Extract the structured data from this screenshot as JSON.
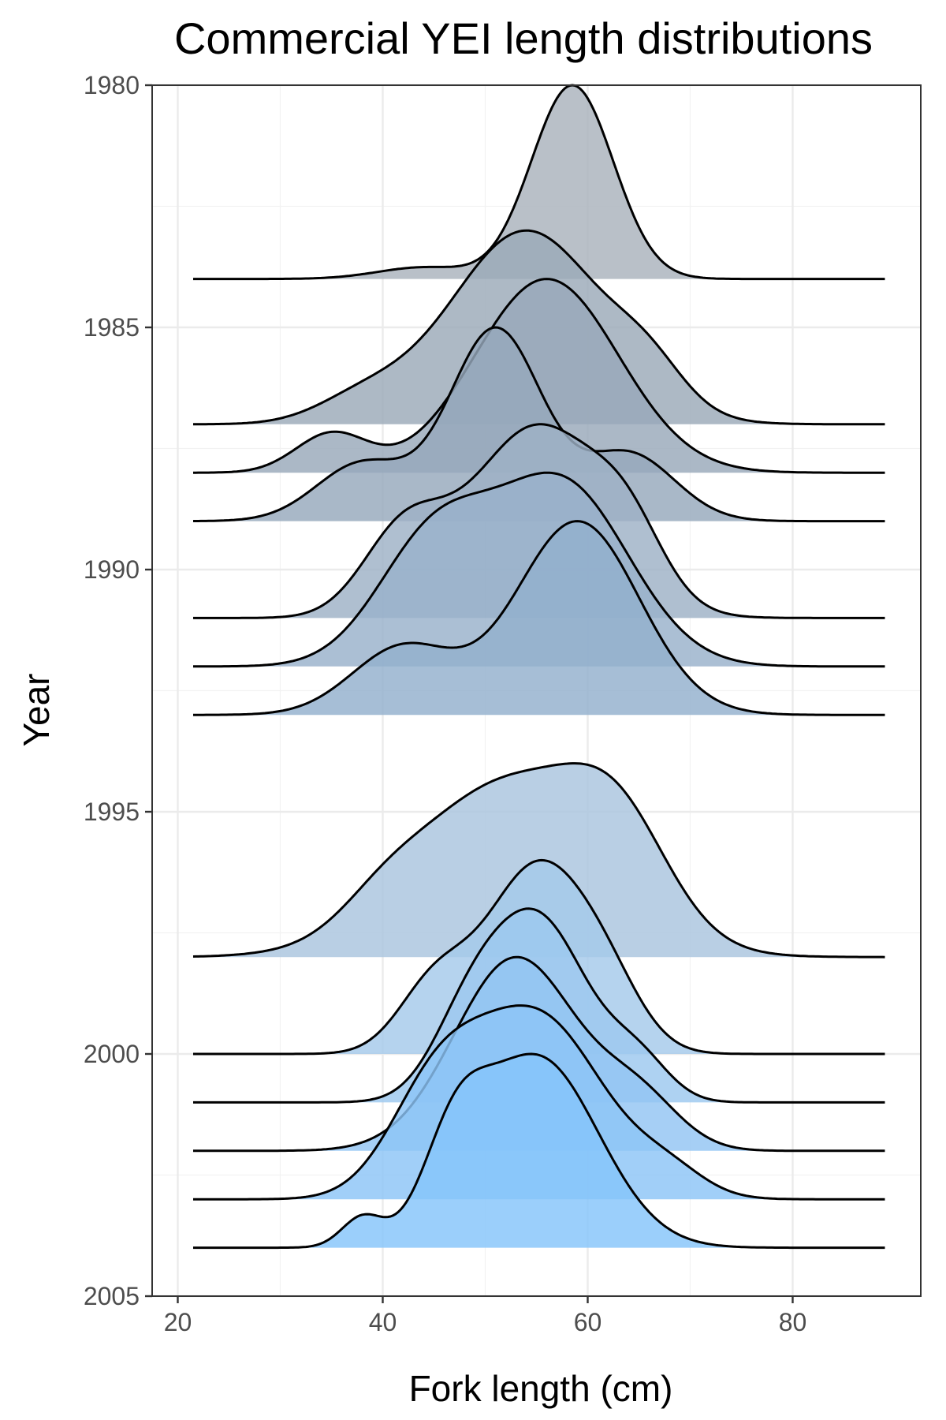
{
  "chart_data": {
    "type": "ridgeline",
    "title": "Commercial YEI length distributions",
    "xlabel": "Fork length (cm)",
    "ylabel": "Year",
    "xlim": [
      17.5,
      92.5
    ],
    "ylim": [
      1980,
      2005
    ],
    "xticks": [
      20,
      40,
      60,
      80
    ],
    "yticks": [
      1980,
      1985,
      1990,
      1995,
      2000,
      2005
    ],
    "grid": true,
    "baseline_fill": "#aeb7c1",
    "top_fill": "#85c4fa",
    "x_range": [
      21.5,
      89
    ],
    "series": [
      {
        "year": 1984,
        "color": "#a9b2bc",
        "peaks": [
          [
            58.5,
            4.0,
            1.0
          ],
          [
            44,
            4.5,
            0.06
          ]
        ]
      },
      {
        "year": 1987,
        "color": "#9ba9b8",
        "peaks": [
          [
            54,
            7.5,
            1.0
          ],
          [
            38,
            4.5,
            0.12
          ],
          [
            66,
            3.5,
            0.18
          ]
        ]
      },
      {
        "year": 1988,
        "color": "#98a8ba",
        "peaks": [
          [
            56,
            7.0,
            1.0
          ],
          [
            35,
            3.5,
            0.2
          ]
        ]
      },
      {
        "year": 1989,
        "color": "#96a8bc",
        "peaks": [
          [
            51,
            4.5,
            1.0
          ],
          [
            38,
            4.5,
            0.3
          ],
          [
            64,
            4.5,
            0.35
          ]
        ]
      },
      {
        "year": 1991,
        "color": "#9db1c6",
        "peaks": [
          [
            55,
            6.5,
            1.0
          ],
          [
            42,
            4.0,
            0.42
          ],
          [
            64,
            3.5,
            0.3
          ]
        ]
      },
      {
        "year": 1992,
        "color": "#98b1ca",
        "peaks": [
          [
            45,
            5.5,
            0.62
          ],
          [
            57.5,
            6.5,
            0.9
          ]
        ]
      },
      {
        "year": 1993,
        "color": "#93b0cd",
        "peaks": [
          [
            59,
            6.0,
            1.0
          ],
          [
            42,
            5.0,
            0.35
          ]
        ]
      },
      {
        "year": 1998,
        "color": "#a9c4de",
        "peaks": [
          [
            52,
            9.0,
            0.95
          ],
          [
            63,
            5.0,
            0.5
          ],
          [
            40,
            4.0,
            0.12
          ]
        ]
      },
      {
        "year": 2000,
        "color": "#a5c9ea",
        "peaks": [
          [
            55,
            5.0,
            1.0
          ],
          [
            45,
            3.5,
            0.35
          ],
          [
            62,
            3.5,
            0.25
          ]
        ]
      },
      {
        "year": 2001,
        "color": "#9cc8ef",
        "peaks": [
          [
            55,
            5.0,
            1.0
          ],
          [
            48,
            3.5,
            0.3
          ],
          [
            65,
            3.0,
            0.2
          ]
        ]
      },
      {
        "year": 2002,
        "color": "#92c5f3",
        "peaks": [
          [
            53,
            6.0,
            1.0
          ],
          [
            65,
            4.0,
            0.25
          ]
        ]
      },
      {
        "year": 2003,
        "color": "#8cc5f6",
        "peaks": [
          [
            55,
            6.5,
            1.0
          ],
          [
            45,
            4.5,
            0.5
          ],
          [
            68,
            3.5,
            0.12
          ]
        ]
      },
      {
        "year": 2004,
        "color": "#85c4fa",
        "peaks": [
          [
            55,
            6.0,
            1.0
          ],
          [
            47,
            3.0,
            0.4
          ],
          [
            38,
            2.0,
            0.15
          ]
        ]
      }
    ],
    "ridge_scale_years": 4
  }
}
